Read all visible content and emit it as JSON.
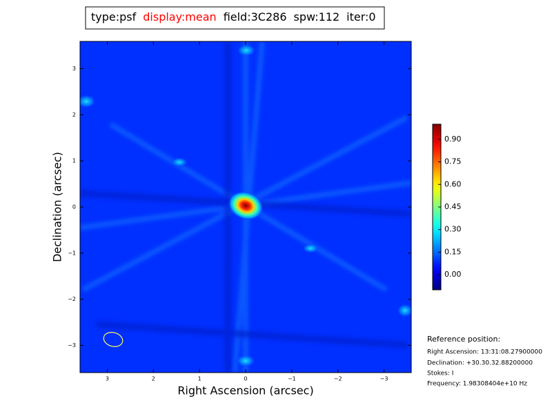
{
  "chart_data": {
    "type": "image",
    "title_parts": [
      {
        "text": "type:psf",
        "color": "#000000"
      },
      {
        "text": "display:mean",
        "color": "#ff0000"
      },
      {
        "text": "field:3C286",
        "color": "#000000"
      },
      {
        "text": "spw:112",
        "color": "#000000"
      },
      {
        "text": "iter:0",
        "color": "#000000"
      }
    ],
    "xlabel": "Right Ascension (arcsec)",
    "ylabel": "Declination (arcsec)",
    "xlim": [
      3.59,
      -3.59
    ],
    "ylim": [
      -3.59,
      3.59
    ],
    "xticks": [
      3,
      2,
      1,
      0,
      {
        "value": -1,
        "label": "−1"
      },
      {
        "value": -2,
        "label": "−2"
      },
      {
        "value": -3,
        "label": "−3"
      }
    ],
    "yticks": [
      {
        "value": -3,
        "label": "−3"
      },
      {
        "value": -2,
        "label": "−2"
      },
      {
        "value": -1,
        "label": "−1"
      },
      0,
      1,
      2,
      3
    ],
    "colormap": "jet",
    "clim": [
      -0.1,
      1.0
    ],
    "cticks": [
      {
        "value": 0,
        "label": "0.00"
      },
      {
        "value": 0.15,
        "label": "0.15"
      },
      {
        "value": 0.3,
        "label": "0.30"
      },
      {
        "value": 0.45,
        "label": "0.45"
      },
      {
        "value": 0.6,
        "label": "0.60"
      },
      {
        "value": 0.75,
        "label": "0.75"
      },
      {
        "value": 0.9,
        "label": "0.90"
      }
    ],
    "reference_position": {
      "title": "Reference position:",
      "lines": [
        "Right Ascension: 13:31:08.27900000",
        "Declination: +30.30.32.88200000",
        "Stokes: I",
        "Frequency: 1.98308404e+10 Hz"
      ]
    }
  }
}
